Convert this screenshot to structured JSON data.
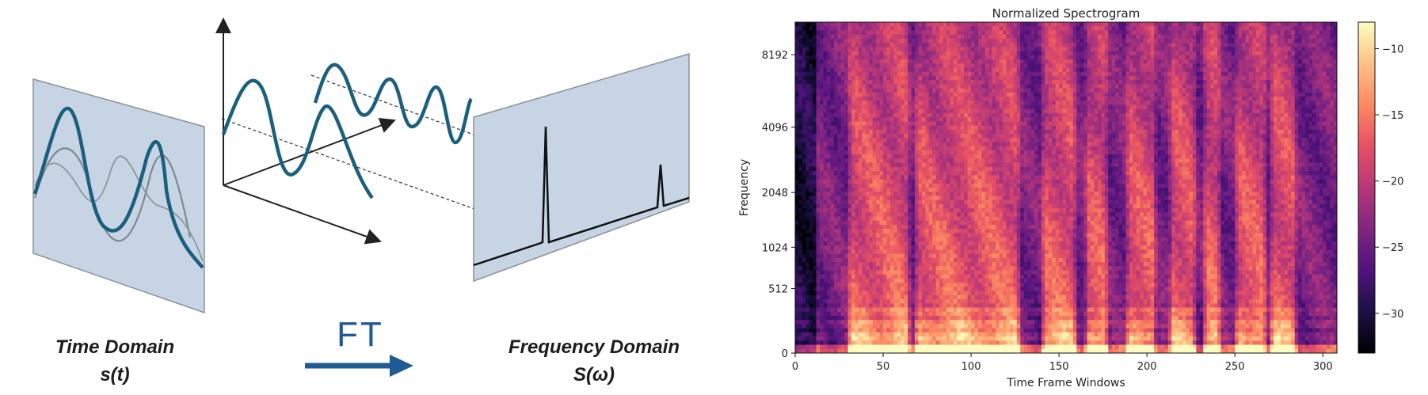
{
  "diagram": {
    "time_label": "Time Domain",
    "time_symbol": "s(t)",
    "freq_label": "Frequency Domain",
    "freq_symbol": "S(ω)",
    "ft_label": "FT",
    "colors": {
      "wave": "#1b5f7e",
      "panel": "#c7d4e3",
      "panel_border": "#8a9099",
      "arrow": "#1e5a96",
      "gray_wave": "#7f8891"
    }
  },
  "chart_data": {
    "type": "heatmap",
    "title": "Normalized Spectrogram",
    "xlabel": "Time Frame Windows",
    "ylabel": "Frequency",
    "xlim": [
      0,
      308
    ],
    "x_ticks": [
      0,
      50,
      100,
      150,
      200,
      250,
      300
    ],
    "y_scale": "mel",
    "y_ticks": [
      0,
      512,
      1024,
      2048,
      4096,
      8192
    ],
    "colorbar_ticks": [
      -10,
      -15,
      -20,
      -25,
      -30
    ],
    "colorbar_range": [
      -33,
      -8
    ],
    "colormap": "magma",
    "voiced_segments": [
      [
        30,
        65
      ],
      [
        68,
        128
      ],
      [
        140,
        160
      ],
      [
        165,
        178
      ],
      [
        188,
        205
      ],
      [
        213,
        228
      ],
      [
        232,
        242
      ],
      [
        250,
        268
      ],
      [
        270,
        285
      ]
    ]
  }
}
